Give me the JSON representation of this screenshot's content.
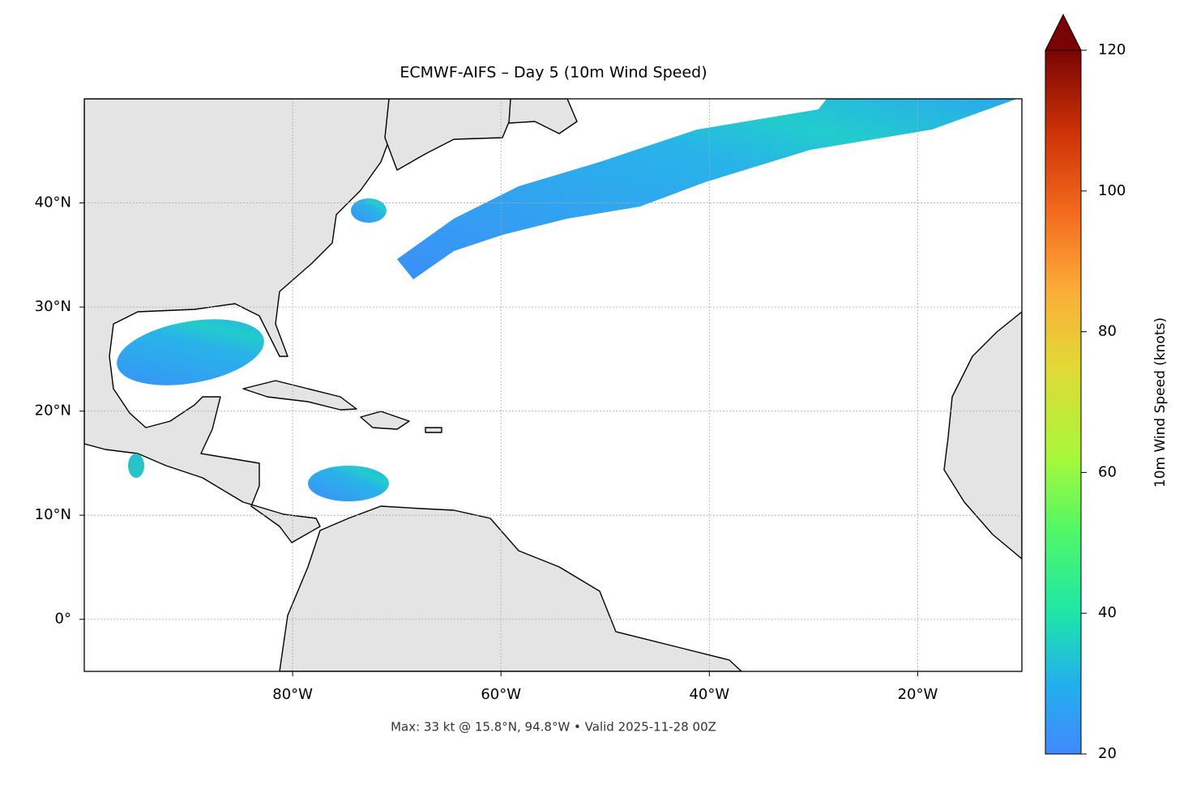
{
  "title": "ECMWF-AIFS – Day 5 (10m Wind Speed)",
  "footer": "Max: 33 kt @ 15.8°N, 94.8°W • Valid 2025-11-28 00Z",
  "map": {
    "lonlim": [
      -100,
      -10
    ],
    "latlim": [
      -5,
      50
    ],
    "lat_ticks": [
      {
        "value": 0,
        "label": "0°"
      },
      {
        "value": 10,
        "label": "10°N"
      },
      {
        "value": 20,
        "label": "20°N"
      },
      {
        "value": 30,
        "label": "30°N"
      },
      {
        "value": 40,
        "label": "40°N"
      }
    ],
    "lon_ticks": [
      {
        "value": -80,
        "label": "80°W"
      },
      {
        "value": -60,
        "label": "60°W"
      },
      {
        "value": -40,
        "label": "40°W"
      },
      {
        "value": -20,
        "label": "20°W"
      }
    ]
  },
  "colorbar": {
    "label": "10m Wind Speed (knots)",
    "lim": [
      20,
      120
    ],
    "ticks": [
      20,
      40,
      60,
      80,
      100,
      120
    ]
  }
}
